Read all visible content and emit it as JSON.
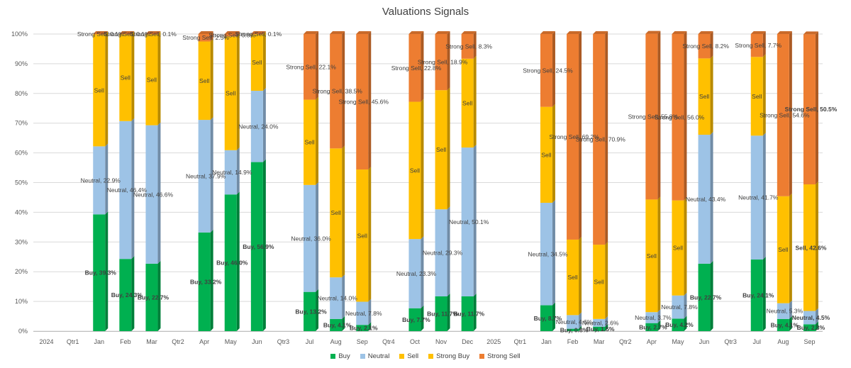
{
  "chart_data": {
    "type": "bar",
    "stacked": true,
    "percent": true,
    "title": "Valuations Signals",
    "ylim": [
      0,
      100
    ],
    "yticks": [
      "0%",
      "10%",
      "20%",
      "30%",
      "40%",
      "50%",
      "60%",
      "70%",
      "80%",
      "90%",
      "100%"
    ],
    "grid": true,
    "legend_position": "bottom",
    "categories": [
      "2024",
      "Qtr1",
      "Jan",
      "Feb",
      "Mar",
      "Qtr2",
      "Apr",
      "May",
      "Jun",
      "Qtr3",
      "Jul",
      "Aug",
      "Sep",
      "Qtr4",
      "Oct",
      "Nov",
      "Dec",
      "2025",
      "Qtr1",
      "Jan",
      "Feb",
      "Mar",
      "Qtr2",
      "Apr",
      "May",
      "Jun",
      "Qtr3",
      "Jul",
      "Aug",
      "Sep"
    ],
    "series": [
      {
        "name": "Buy",
        "color": "#00b050",
        "values": [
          null,
          null,
          39.3,
          24.3,
          22.7,
          null,
          33.2,
          46.0,
          56.9,
          null,
          13.2,
          4.1,
          2.1,
          null,
          7.7,
          11.7,
          11.7,
          null,
          null,
          8.7,
          0.8,
          1.5,
          null,
          2.7,
          4.2,
          22.7,
          null,
          24.1,
          4.1,
          2.3
        ]
      },
      {
        "name": "Neutral",
        "color": "#9dc3e6",
        "values": [
          null,
          null,
          22.9,
          46.4,
          46.6,
          null,
          37.9,
          14.9,
          24.0,
          null,
          36.0,
          14.0,
          7.8,
          null,
          23.3,
          29.3,
          50.1,
          null,
          null,
          34.5,
          4.6,
          2.6,
          null,
          3.7,
          7.8,
          43.4,
          null,
          41.7,
          5.3,
          4.5
        ]
      },
      {
        "name": "Sell",
        "color": "#ffc000",
        "values": [
          null,
          null,
          37.7,
          29.2,
          30.6,
          null,
          26.4,
          38.3,
          19.0,
          null,
          28.7,
          43.4,
          44.5,
          null,
          46.2,
          40.1,
          29.9,
          null,
          null,
          32.3,
          25.4,
          25.0,
          null,
          37.9,
          32.0,
          25.7,
          null,
          26.5,
          36.0,
          42.6
        ]
      },
      {
        "name": "Strong Buy",
        "color": "#ffc000",
        "values": [
          null,
          null,
          0.0,
          0.0,
          0.0,
          null,
          0.0,
          0.0,
          0.0,
          null,
          0.0,
          0.0,
          0.0,
          null,
          0.0,
          0.0,
          0.0,
          null,
          null,
          0.0,
          0.0,
          0.0,
          null,
          0.0,
          0.0,
          0.0,
          null,
          0.0,
          0.0,
          0.0
        ]
      },
      {
        "name": "Strong Sell",
        "color": "#ed7d31",
        "values": [
          null,
          null,
          0.1,
          0.1,
          0.1,
          null,
          2.5,
          0.8,
          0.1,
          null,
          22.1,
          38.5,
          45.6,
          null,
          22.8,
          18.9,
          8.3,
          null,
          null,
          24.5,
          69.2,
          70.9,
          null,
          55.8,
          56.0,
          8.2,
          null,
          7.7,
          54.6,
          50.5
        ]
      }
    ],
    "data_labels": [
      [
        "Buy, 39.3%",
        "Neutral, 22.9%",
        "Sell",
        "",
        "Strong Sell, 0.1%"
      ],
      [
        "Buy, 24.3%",
        "Neutral, 46.4%",
        "Sell",
        "",
        "Strong Sell, 0.1%"
      ],
      [
        "Buy, 22.7%",
        "Neutral, 46.6%",
        "Sell",
        "",
        "Strong Sell, 0.1%"
      ],
      [
        "Buy, 33.2%",
        "Neutral, 37.9%",
        "Sell",
        "",
        "Strong Sell, 2.5%"
      ],
      [
        "Buy, 46.0%",
        "Neutral, 14.9%",
        "Sell",
        "",
        "Strong Sell, 0.8%"
      ],
      [
        "Buy, 56.9%",
        "Neutral, 24.0%",
        "Sell",
        "",
        "Strong Sell, 0.1%"
      ],
      [
        "Buy, 13.2%",
        "Neutral, 36.0%",
        "Sell",
        "",
        "Strong Sell, 22.1%"
      ],
      [
        "Buy, 4.1%",
        "Neutral, 14.0%",
        "Sell",
        "",
        "Strong Sell, 38.5%"
      ],
      [
        "Buy, 2.1%",
        "Neutral, 7.8%",
        "Sell",
        "",
        "Strong Sell, 45.6%"
      ],
      [
        "Buy, 7.7%",
        "Neutral, 23.3%",
        "Sell",
        "",
        "Strong Sell, 22.8%"
      ],
      [
        "Buy, 11.7%",
        "Neutral, 29.3%",
        "Sell",
        "",
        "Strong Sell, 18.9%"
      ],
      [
        "Buy, 11.7%",
        "Neutral, 50.1%",
        "Sell",
        "",
        "Strong Sell, 8.3%"
      ],
      [
        "Buy, 8.7%",
        "Neutral, 34.5%",
        "Sell",
        "",
        "Strong Sell, 24.5%"
      ],
      [
        "Buy, 0.8%",
        "Neutral, 4.6%",
        "Sell",
        "",
        "Strong Sell, 69.2%"
      ],
      [
        "Buy, 1.5%",
        "Neutral, 2.6%",
        "Sell",
        "",
        "Strong Sell, 70.9%"
      ],
      [
        "Buy, 2.7%",
        "Neutral, 3.7%",
        "Sell",
        "",
        "Strong Sell, 55.8%"
      ],
      [
        "Buy, 4.2%",
        "Neutral, 7.8%",
        "Sell",
        "",
        "Strong Sell, 56.0%"
      ],
      [
        "Buy, 22.7%",
        "Neutral, 43.4%",
        "Sell",
        "",
        "Strong Sell, 8.2%"
      ],
      [
        "Buy, 24.1%",
        "Neutral, 41.7%",
        "Sell",
        "",
        "Strong Sell, 7.7%"
      ],
      [
        "Buy, 4.1%",
        "Neutral, 5.3%",
        "Sell",
        "",
        "Strong Sell, 54.6%"
      ],
      [
        "Buy, 2.3%",
        "Neutral, 4.5%",
        "Sell, 42.6%",
        "",
        "Strong Sell, 50.5%"
      ]
    ],
    "legend": [
      "Buy",
      "Neutral",
      "Sell",
      "Strong Buy",
      "Strong Sell"
    ]
  }
}
